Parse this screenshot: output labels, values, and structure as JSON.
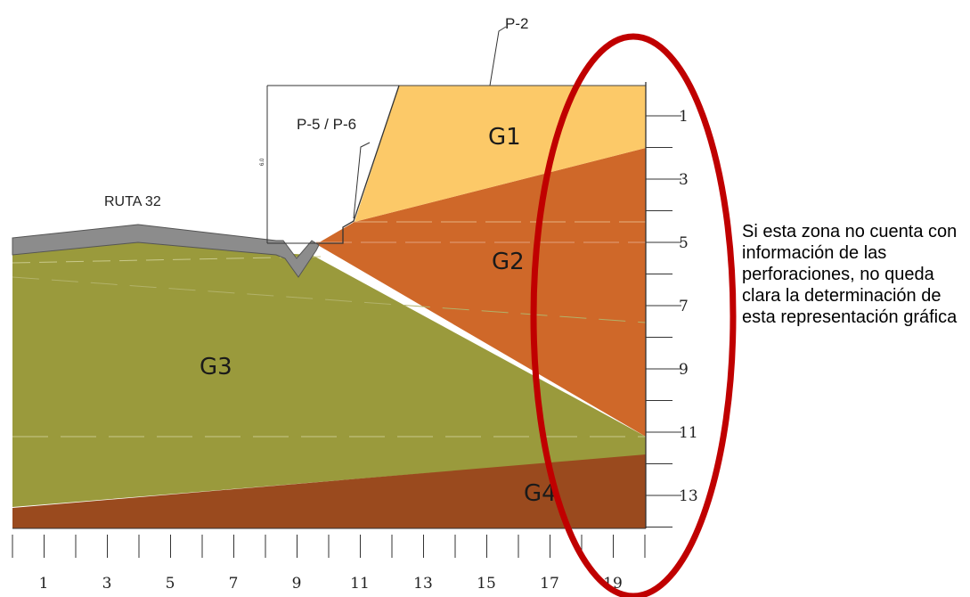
{
  "labels": {
    "p2": "P-2",
    "p5p6": "P-5 / P-6",
    "ruta": "RUTA 32",
    "height": "6.0"
  },
  "layers": [
    {
      "key": "g1",
      "name": "G1",
      "color": "#FCC968"
    },
    {
      "key": "g2",
      "name": "G2",
      "color": "#CF6829"
    },
    {
      "key": "g3",
      "name": "G3",
      "color": "#9A9A3C"
    },
    {
      "key": "g4",
      "name": "G4",
      "color": "#9A4A1E"
    }
  ],
  "road_color": "#8C8C8C",
  "highlight_color": "#C00000",
  "right_axis_ticks": [
    "1",
    "3",
    "5",
    "7",
    "9",
    "11",
    "13"
  ],
  "bottom_axis_ticks": [
    "1",
    "3",
    "5",
    "7",
    "9",
    "11",
    "13",
    "15",
    "17",
    "19"
  ],
  "annotation": "Si esta zona no cuenta con información de las perforaciones, no queda clara la determinación de esta representación gráfica"
}
